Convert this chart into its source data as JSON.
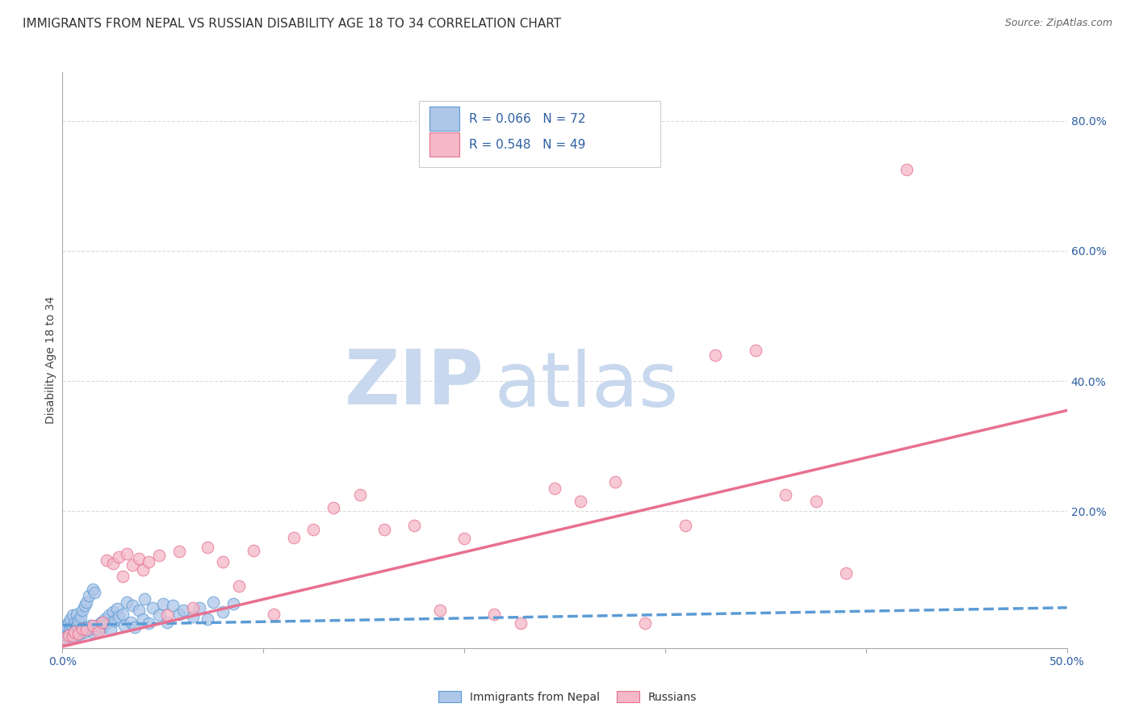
{
  "title": "IMMIGRANTS FROM NEPAL VS RUSSIAN DISABILITY AGE 18 TO 34 CORRELATION CHART",
  "source": "Source: ZipAtlas.com",
  "ylabel": "Disability Age 18 to 34",
  "xlim": [
    0.0,
    0.5
  ],
  "ylim": [
    -0.01,
    0.875
  ],
  "xticks": [
    0.0,
    0.1,
    0.2,
    0.3,
    0.4,
    0.5
  ],
  "xticklabels": [
    "0.0%",
    "",
    "",
    "",
    "",
    "50.0%"
  ],
  "yticks_right": [
    0.0,
    0.2,
    0.4,
    0.6,
    0.8
  ],
  "yticklabels_right": [
    "",
    "20.0%",
    "40.0%",
    "60.0%",
    "80.0%"
  ],
  "nepal_color": "#aec6e8",
  "nepal_edge_color": "#5b9bd5",
  "russia_color": "#f4b8c8",
  "russia_edge_color": "#e87090",
  "nepal_R": 0.066,
  "nepal_N": 72,
  "russia_R": 0.548,
  "russia_N": 49,
  "nepal_scatter_x": [
    0.001,
    0.001,
    0.001,
    0.002,
    0.002,
    0.002,
    0.003,
    0.003,
    0.003,
    0.004,
    0.004,
    0.004,
    0.005,
    0.005,
    0.005,
    0.006,
    0.006,
    0.007,
    0.007,
    0.007,
    0.008,
    0.008,
    0.009,
    0.009,
    0.01,
    0.01,
    0.011,
    0.011,
    0.012,
    0.012,
    0.013,
    0.013,
    0.014,
    0.015,
    0.015,
    0.016,
    0.016,
    0.017,
    0.018,
    0.019,
    0.02,
    0.021,
    0.022,
    0.023,
    0.024,
    0.025,
    0.026,
    0.027,
    0.028,
    0.03,
    0.031,
    0.032,
    0.034,
    0.035,
    0.036,
    0.038,
    0.04,
    0.041,
    0.043,
    0.045,
    0.048,
    0.05,
    0.052,
    0.055,
    0.058,
    0.06,
    0.065,
    0.068,
    0.072,
    0.075,
    0.08,
    0.085
  ],
  "nepal_scatter_y": [
    0.01,
    0.02,
    0.005,
    0.015,
    0.025,
    0.008,
    0.01,
    0.03,
    0.005,
    0.012,
    0.02,
    0.035,
    0.008,
    0.022,
    0.04,
    0.015,
    0.028,
    0.01,
    0.025,
    0.042,
    0.018,
    0.032,
    0.012,
    0.038,
    0.02,
    0.048,
    0.015,
    0.055,
    0.022,
    0.06,
    0.018,
    0.07,
    0.025,
    0.015,
    0.08,
    0.02,
    0.075,
    0.025,
    0.018,
    0.03,
    0.022,
    0.035,
    0.028,
    0.04,
    0.018,
    0.045,
    0.032,
    0.05,
    0.038,
    0.042,
    0.025,
    0.06,
    0.03,
    0.055,
    0.022,
    0.048,
    0.035,
    0.065,
    0.028,
    0.052,
    0.04,
    0.058,
    0.03,
    0.055,
    0.042,
    0.048,
    0.038,
    0.052,
    0.035,
    0.06,
    0.045,
    0.058
  ],
  "russia_scatter_x": [
    0.001,
    0.003,
    0.005,
    0.006,
    0.008,
    0.01,
    0.012,
    0.015,
    0.018,
    0.02,
    0.022,
    0.025,
    0.028,
    0.03,
    0.032,
    0.035,
    0.038,
    0.04,
    0.043,
    0.048,
    0.052,
    0.058,
    0.065,
    0.072,
    0.08,
    0.088,
    0.095,
    0.105,
    0.115,
    0.125,
    0.135,
    0.148,
    0.16,
    0.175,
    0.188,
    0.2,
    0.215,
    0.228,
    0.245,
    0.258,
    0.275,
    0.29,
    0.31,
    0.325,
    0.345,
    0.36,
    0.375,
    0.39,
    0.42
  ],
  "russia_scatter_y": [
    0.005,
    0.01,
    0.008,
    0.015,
    0.012,
    0.02,
    0.018,
    0.025,
    0.015,
    0.03,
    0.125,
    0.12,
    0.13,
    0.1,
    0.135,
    0.118,
    0.128,
    0.11,
    0.122,
    0.132,
    0.04,
    0.138,
    0.052,
    0.145,
    0.122,
    0.085,
    0.14,
    0.042,
    0.16,
    0.172,
    0.205,
    0.225,
    0.172,
    0.178,
    0.048,
    0.158,
    0.042,
    0.028,
    0.235,
    0.215,
    0.245,
    0.028,
    0.178,
    0.44,
    0.448,
    0.225,
    0.215,
    0.105,
    0.725
  ],
  "nepal_trendline_x": [
    0.0,
    0.5
  ],
  "nepal_trendline_y": [
    0.025,
    0.052
  ],
  "russia_trendline_x": [
    -0.01,
    0.5
  ],
  "russia_trendline_y": [
    -0.015,
    0.355
  ],
  "background_color": "#ffffff",
  "grid_color": "#cccccc",
  "watermark_zip": "ZIP",
  "watermark_atlas": "atlas",
  "watermark_color_zip": "#c8d8ee",
  "watermark_color_atlas": "#c8d8ee",
  "title_fontsize": 11,
  "axis_label_fontsize": 10,
  "tick_fontsize": 10,
  "legend_text_color": "#2e5fa3",
  "legend_R_label_color": "#333333",
  "source_color": "#666666"
}
